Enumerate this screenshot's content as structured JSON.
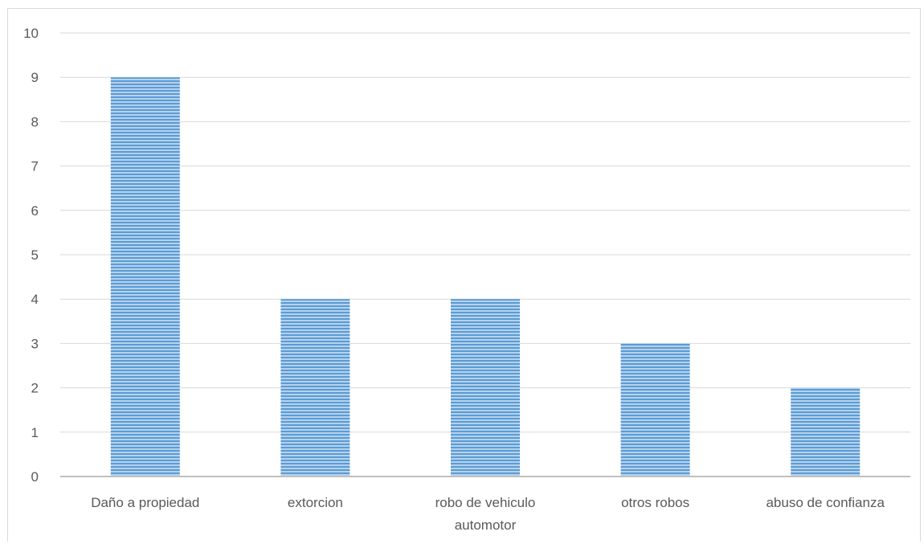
{
  "chart_data": {
    "type": "bar",
    "title": "",
    "xlabel": "",
    "ylabel": "",
    "categories": [
      [
        "Daño a propiedad"
      ],
      [
        "extorcion"
      ],
      [
        "robo de vehiculo",
        "automotor"
      ],
      [
        "otros robos"
      ],
      [
        "abuso de confianza"
      ]
    ],
    "values": [
      9,
      4,
      4,
      3,
      2
    ],
    "ylim": [
      0,
      10
    ],
    "yticks": [
      "0",
      "1",
      "2",
      "3",
      "4",
      "5",
      "6",
      "7",
      "8",
      "9",
      "10"
    ],
    "grid": true,
    "legend": "none",
    "bar_color": "#5b9bd5",
    "bar_stripe_color": "#ffffff",
    "grid_color": "#d9d9d9",
    "axis_color": "#bfbfbf",
    "text_color": "#595959"
  }
}
